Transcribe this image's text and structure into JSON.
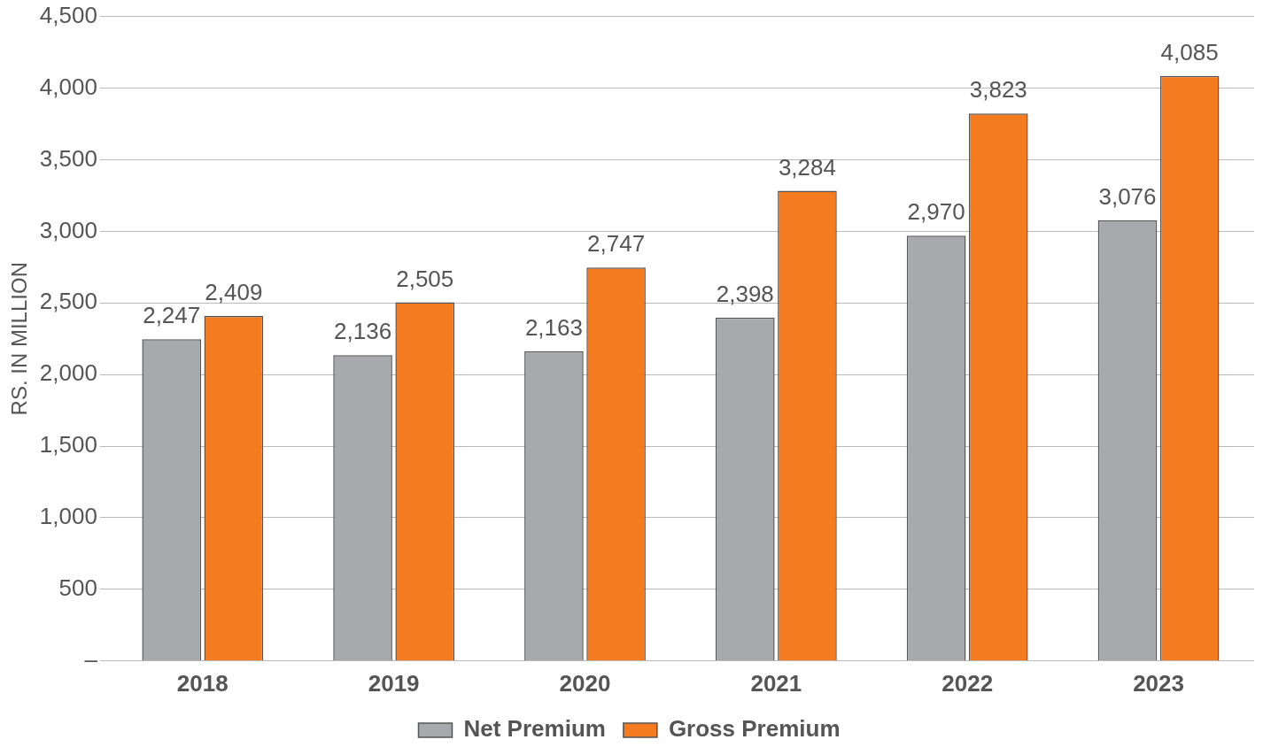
{
  "chart_data": {
    "type": "bar",
    "ylabel": "RS. IN MILLION",
    "categories": [
      "2018",
      "2019",
      "2020",
      "2021",
      "2022",
      "2023"
    ],
    "series": [
      {
        "name": "Net Premium",
        "color": "#a7a9ac",
        "values": [
          2247,
          2136,
          2163,
          2398,
          2970,
          3076
        ],
        "value_labels": [
          "2,247",
          "2,136",
          "2,163",
          "2,398",
          "2,970",
          "3,076"
        ]
      },
      {
        "name": "Gross Premium",
        "color": "#f47b20",
        "values": [
          2409,
          2505,
          2747,
          3284,
          3823,
          4085
        ],
        "value_labels": [
          "2,409",
          "2,505",
          "2,747",
          "3,284",
          "3,823",
          "4,085"
        ]
      }
    ],
    "ylim": [
      0,
      4500
    ],
    "yticks": [
      {
        "value": 0,
        "label": "–"
      },
      {
        "value": 500,
        "label": "500"
      },
      {
        "value": 1000,
        "label": "1,000"
      },
      {
        "value": 1500,
        "label": "1,500"
      },
      {
        "value": 2000,
        "label": "2,000"
      },
      {
        "value": 2500,
        "label": "2,500"
      },
      {
        "value": 3000,
        "label": "3,000"
      },
      {
        "value": 3500,
        "label": "3,500"
      },
      {
        "value": 4000,
        "label": "4,000"
      },
      {
        "value": 4500,
        "label": "4,500"
      }
    ],
    "grid": "y",
    "legend": "bottom"
  }
}
